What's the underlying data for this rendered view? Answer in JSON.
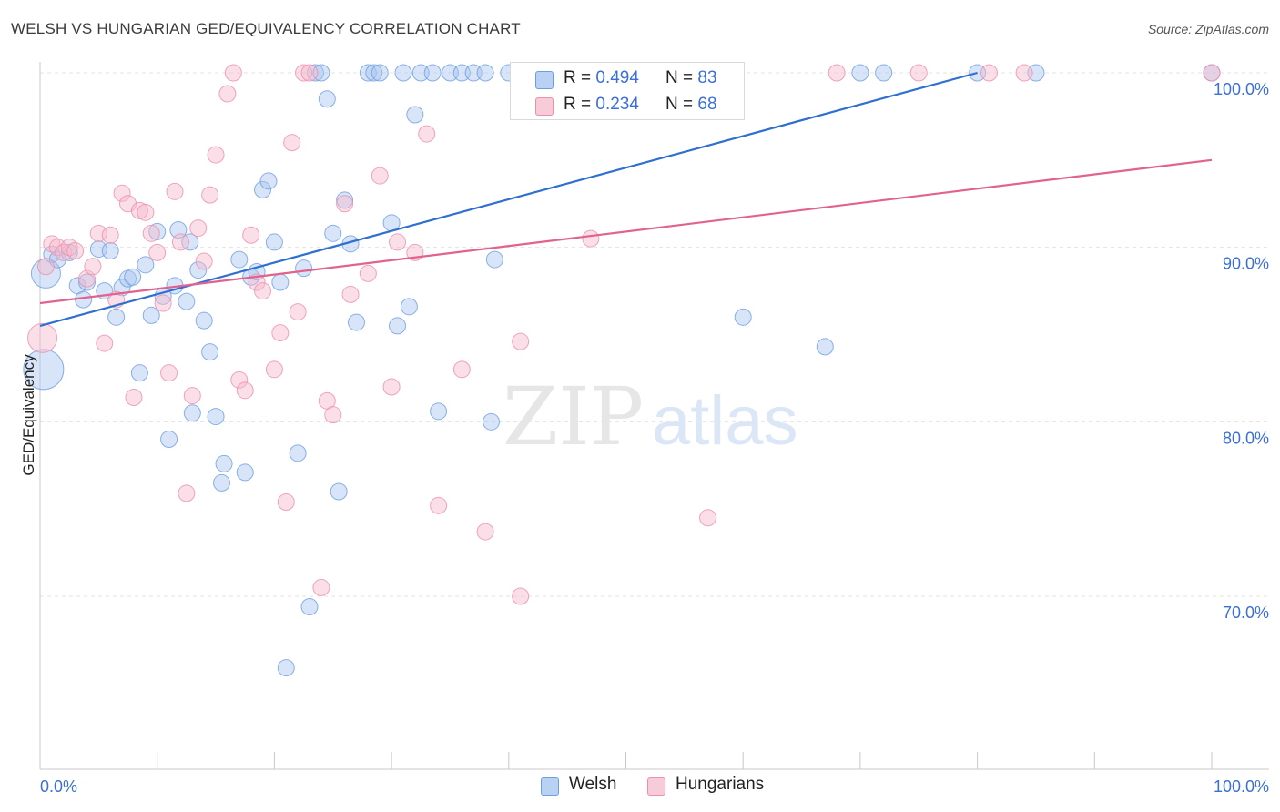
{
  "header": {
    "title": "WELSH VS HUNGARIAN GED/EQUIVALENCY CORRELATION CHART",
    "source": "Source: ZipAtlas.com"
  },
  "legend_top": {
    "rows": [
      {
        "r_label": "R =",
        "r_value": "0.494",
        "n_label": "N =",
        "n_value": "83"
      },
      {
        "r_label": "R =",
        "r_value": "0.234",
        "n_label": "N =",
        "n_value": "68"
      }
    ]
  },
  "legend_bottom": {
    "welsh": "Welsh",
    "hungarians": "Hungarians"
  },
  "watermark": {
    "zip": "ZIP",
    "atlas": "atlas"
  },
  "colors": {
    "welsh_fill": "#a9c6ef",
    "welsh_stroke": "#6f9ee0",
    "welsh_line": "#2f6fcf",
    "hungarian_fill": "#f6b9cb",
    "hungarian_stroke": "#ec8fab",
    "hungarian_line": "#e2628e",
    "axis_label": "#3a6fd8",
    "grid": "#e3e3e3"
  },
  "chart_data": {
    "type": "scatter",
    "title": "WELSH VS HUNGARIAN GED/EQUIVALENCY CORRELATION CHART",
    "xlabel": "",
    "ylabel": "GED/Equivalency",
    "xlim": [
      0,
      100
    ],
    "ylim": [
      60,
      102
    ],
    "x_tick_labels": [
      "0.0%",
      "100.0%"
    ],
    "y_ticks": [
      {
        "value": 70,
        "label": "70.0%"
      },
      {
        "value": 80,
        "label": "80.0%"
      },
      {
        "value": 90,
        "label": "90.0%"
      },
      {
        "value": 100,
        "label": "100.0%"
      }
    ],
    "grid": true,
    "legend_position": "top-center",
    "series": [
      {
        "name": "Welsh",
        "R": 0.494,
        "N": 83,
        "trend": {
          "x": [
            0,
            80
          ],
          "y": [
            85.5,
            100
          ]
        },
        "points": [
          [
            0.3,
            83,
            22
          ],
          [
            0.5,
            88.5,
            16
          ],
          [
            1,
            89.6,
            9
          ],
          [
            1.5,
            89.3,
            9
          ],
          [
            2.5,
            89.7,
            9
          ],
          [
            3.2,
            87.8,
            9
          ],
          [
            3.7,
            87,
            9
          ],
          [
            4,
            88,
            9
          ],
          [
            5,
            89.9,
            9
          ],
          [
            5.5,
            87.5,
            9
          ],
          [
            6,
            89.8,
            9
          ],
          [
            6.5,
            86,
            9
          ],
          [
            7,
            87.7,
            9
          ],
          [
            7.5,
            88.2,
            9
          ],
          [
            7.9,
            88.3,
            9
          ],
          [
            8.5,
            82.8,
            9
          ],
          [
            9,
            89,
            9
          ],
          [
            9.5,
            86.1,
            9
          ],
          [
            10,
            90.9,
            9
          ],
          [
            10.5,
            87.2,
            9
          ],
          [
            11,
            79,
            9
          ],
          [
            11.5,
            87.8,
            9
          ],
          [
            11.8,
            91,
            9
          ],
          [
            12.5,
            86.9,
            9
          ],
          [
            12.8,
            90.3,
            9
          ],
          [
            13,
            80.5,
            9
          ],
          [
            13.5,
            88.7,
            9
          ],
          [
            14,
            85.8,
            9
          ],
          [
            14.5,
            84,
            9
          ],
          [
            15,
            80.3,
            9
          ],
          [
            15.7,
            77.6,
            9
          ],
          [
            15.5,
            76.5,
            9
          ],
          [
            17,
            89.3,
            9
          ],
          [
            17.5,
            77.1,
            9
          ],
          [
            18,
            88.3,
            9
          ],
          [
            18.5,
            88.6,
            9
          ],
          [
            19,
            93.3,
            9
          ],
          [
            19.5,
            93.8,
            9
          ],
          [
            20,
            90.3,
            9
          ],
          [
            20.5,
            88,
            9
          ],
          [
            21,
            65.9,
            9
          ],
          [
            22,
            78.2,
            9
          ],
          [
            22.5,
            88.8,
            9
          ],
          [
            23,
            69.4,
            9
          ],
          [
            23.5,
            100,
            9
          ],
          [
            24,
            100,
            9
          ],
          [
            24.5,
            98.5,
            9
          ],
          [
            25,
            90.8,
            9
          ],
          [
            25.5,
            76,
            9
          ],
          [
            26,
            92.7,
            9
          ],
          [
            26.5,
            90.2,
            9
          ],
          [
            27,
            85.7,
            9
          ],
          [
            28,
            100,
            9
          ],
          [
            28.5,
            100,
            9
          ],
          [
            29,
            100,
            9
          ],
          [
            30,
            91.4,
            9
          ],
          [
            30.5,
            85.5,
            9
          ],
          [
            31,
            100,
            9
          ],
          [
            31.5,
            86.6,
            9
          ],
          [
            32,
            97.6,
            9
          ],
          [
            32.5,
            100,
            9
          ],
          [
            33.5,
            100,
            9
          ],
          [
            34,
            80.6,
            9
          ],
          [
            35,
            100,
            9
          ],
          [
            36,
            100,
            9
          ],
          [
            37,
            100,
            9
          ],
          [
            38,
            100,
            9
          ],
          [
            38.5,
            80,
            9
          ],
          [
            38.8,
            89.3,
            9
          ],
          [
            40,
            100,
            9
          ],
          [
            42,
            100,
            9
          ],
          [
            45,
            100,
            9
          ],
          [
            47,
            100,
            9
          ],
          [
            48,
            100,
            9
          ],
          [
            50,
            100,
            9
          ],
          [
            60,
            86,
            9
          ],
          [
            67,
            84.3,
            9
          ],
          [
            70,
            100,
            9
          ],
          [
            72,
            100,
            9
          ],
          [
            80,
            100,
            9
          ],
          [
            85,
            100,
            9
          ],
          [
            100,
            100,
            9
          ]
        ]
      },
      {
        "name": "Hungarians",
        "R": 0.234,
        "N": 68,
        "trend": {
          "x": [
            0,
            100
          ],
          "y": [
            86.8,
            95
          ]
        },
        "points": [
          [
            0.2,
            84.8,
            16
          ],
          [
            0.5,
            88.9,
            9
          ],
          [
            1,
            90.2,
            9
          ],
          [
            1.5,
            90,
            9
          ],
          [
            2,
            89.7,
            9
          ],
          [
            2.5,
            90,
            9
          ],
          [
            3,
            89.8,
            9
          ],
          [
            4,
            88.2,
            9
          ],
          [
            4.5,
            88.9,
            9
          ],
          [
            5,
            90.8,
            9
          ],
          [
            5.5,
            84.5,
            9
          ],
          [
            6,
            90.7,
            9
          ],
          [
            6.5,
            87,
            9
          ],
          [
            7,
            93.1,
            9
          ],
          [
            7.5,
            92.5,
            9
          ],
          [
            8,
            81.4,
            9
          ],
          [
            8.5,
            92.1,
            9
          ],
          [
            9,
            92,
            9
          ],
          [
            9.5,
            90.8,
            9
          ],
          [
            10,
            89.7,
            9
          ],
          [
            10.5,
            86.8,
            9
          ],
          [
            11,
            82.8,
            9
          ],
          [
            11.5,
            93.2,
            9
          ],
          [
            12,
            90.3,
            9
          ],
          [
            12.5,
            75.9,
            9
          ],
          [
            13,
            81.5,
            9
          ],
          [
            13.5,
            91.1,
            9
          ],
          [
            14,
            89.2,
            9
          ],
          [
            14.5,
            93,
            9
          ],
          [
            15,
            95.3,
            9
          ],
          [
            16,
            98.8,
            9
          ],
          [
            16.5,
            100,
            9
          ],
          [
            17,
            82.4,
            9
          ],
          [
            17.5,
            81.8,
            9
          ],
          [
            18,
            90.7,
            9
          ],
          [
            18.5,
            88,
            9
          ],
          [
            19,
            87.5,
            9
          ],
          [
            20,
            83,
            9
          ],
          [
            20.5,
            85.1,
            9
          ],
          [
            21,
            75.4,
            9
          ],
          [
            21.5,
            96,
            9
          ],
          [
            22,
            86.3,
            9
          ],
          [
            22.5,
            100,
            9
          ],
          [
            23,
            100,
            9
          ],
          [
            24,
            70.5,
            9
          ],
          [
            24.5,
            81.2,
            9
          ],
          [
            25,
            80.4,
            9
          ],
          [
            26,
            92.5,
            9
          ],
          [
            26.5,
            87.3,
            9
          ],
          [
            28,
            88.5,
            9
          ],
          [
            29,
            94.1,
            9
          ],
          [
            30,
            82,
            9
          ],
          [
            30.5,
            90.3,
            9
          ],
          [
            32,
            89.7,
            9
          ],
          [
            33,
            96.5,
            9
          ],
          [
            34,
            75.2,
            9
          ],
          [
            36,
            83,
            9
          ],
          [
            38,
            73.7,
            9
          ],
          [
            41,
            84.6,
            9
          ],
          [
            41,
            70,
            9
          ],
          [
            47,
            90.5,
            9
          ],
          [
            54,
            100,
            9
          ],
          [
            57,
            74.5,
            9
          ],
          [
            68,
            100,
            9
          ],
          [
            75,
            100,
            9
          ],
          [
            81,
            100,
            9
          ],
          [
            84,
            100,
            9
          ],
          [
            100,
            100,
            9
          ]
        ]
      }
    ]
  }
}
